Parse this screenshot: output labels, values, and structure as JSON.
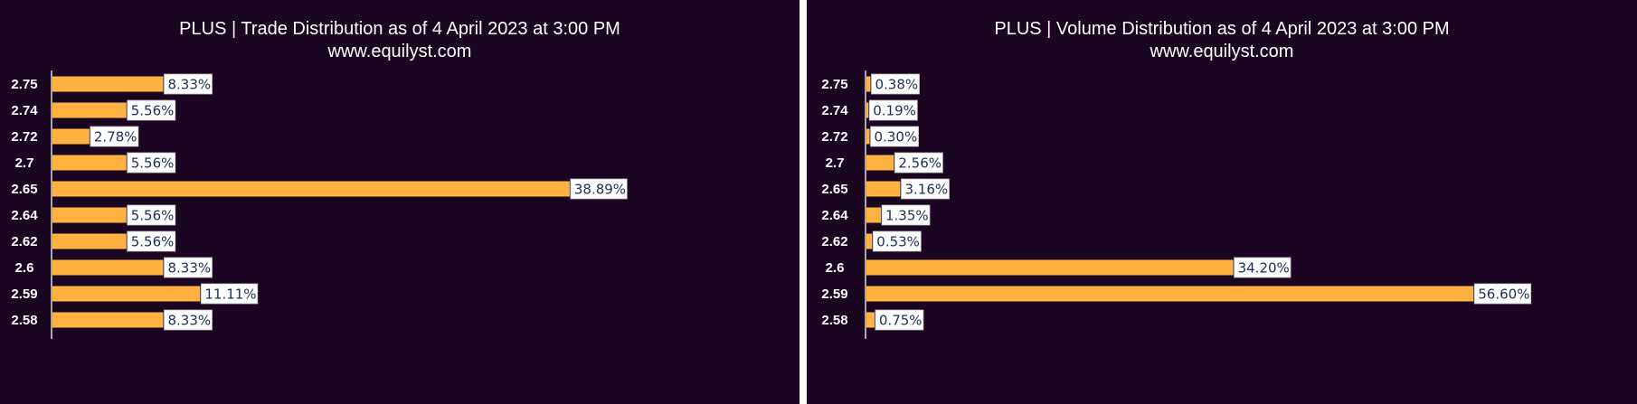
{
  "chart_data": [
    {
      "type": "bar",
      "orientation": "horizontal",
      "title": "PLUS | Trade Distribution as of 4 April 2023 at 3:00 PM",
      "subtitle": "www.equilyst.com",
      "categories": [
        "2.75",
        "2.74",
        "2.72",
        "2.7",
        "2.65",
        "2.64",
        "2.62",
        "2.6",
        "2.59",
        "2.58"
      ],
      "values": [
        8.33,
        5.56,
        2.78,
        5.56,
        38.89,
        5.56,
        5.56,
        8.33,
        11.11,
        8.33
      ],
      "data_labels": [
        "8.33%",
        "5.56%",
        "2.78%",
        "5.56%",
        "38.89%",
        "5.56%",
        "5.56%",
        "8.33%",
        "11.11%",
        "8.33%"
      ],
      "xlim": [
        0,
        44
      ],
      "bar_color": "#ffb23f",
      "background": "#1b0621"
    },
    {
      "type": "bar",
      "orientation": "horizontal",
      "title": "PLUS | Volume Distribution as of 4 April 2023 at 3:00 PM",
      "subtitle": "www.equilyst.com",
      "categories": [
        "2.75",
        "2.74",
        "2.72",
        "2.7",
        "2.65",
        "2.64",
        "2.62",
        "2.6",
        "2.59",
        "2.58"
      ],
      "values": [
        0.38,
        0.19,
        0.3,
        2.56,
        3.16,
        1.35,
        0.53,
        34.2,
        56.6,
        0.75
      ],
      "data_labels": [
        "0.38%",
        "0.19%",
        "0.30%",
        "2.56%",
        "3.16%",
        "1.35%",
        "0.53%",
        "34.20%",
        "56.60%",
        "0.75%"
      ],
      "xlim": [
        0,
        57
      ],
      "bar_color": "#ffb23f",
      "background": "#1b0621"
    }
  ]
}
